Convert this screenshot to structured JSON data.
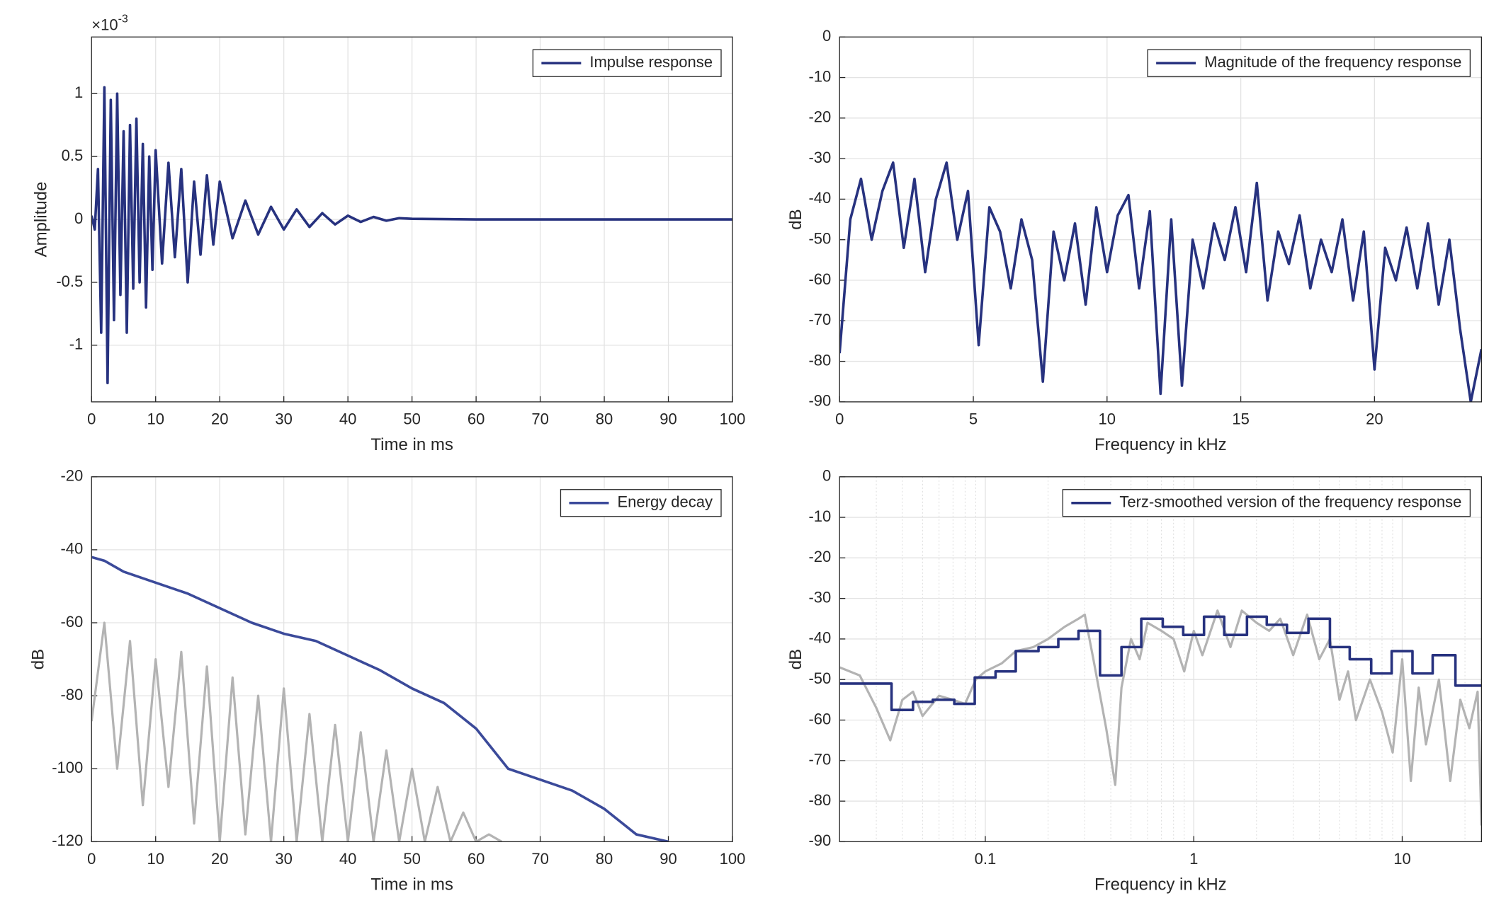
{
  "chart_data": [
    {
      "type": "line",
      "xlabel": "Time in ms",
      "ylabel": "Amplitude",
      "y_multiplier": {
        "base": "×10",
        "exponent": "-3"
      },
      "xlim": [
        0,
        100
      ],
      "xticks": [
        0,
        10,
        20,
        30,
        40,
        50,
        60,
        70,
        80,
        90,
        100
      ],
      "ylim": [
        -1.45,
        1.45
      ],
      "yticks": [
        -1,
        -0.5,
        0,
        0.5,
        1
      ],
      "grid": true,
      "legend": "northeast",
      "series": [
        {
          "name": "Impulse response",
          "color": "#27327f",
          "x": [
            0,
            0.5,
            1,
            1.5,
            2,
            2.5,
            3,
            3.5,
            4,
            4.5,
            5,
            5.5,
            6,
            6.5,
            7,
            7.5,
            8,
            8.5,
            9,
            9.5,
            10,
            11,
            12,
            13,
            14,
            15,
            16,
            17,
            18,
            19,
            20,
            22,
            24,
            26,
            28,
            30,
            32,
            34,
            36,
            38,
            40,
            42,
            44,
            46,
            48,
            50,
            60,
            70,
            80,
            90,
            100
          ],
          "values": [
            0.03,
            -0.08,
            0.4,
            -0.9,
            1.05,
            -1.3,
            0.95,
            -0.8,
            1.0,
            -0.6,
            0.7,
            -0.9,
            0.75,
            -0.55,
            0.8,
            -0.5,
            0.6,
            -0.7,
            0.5,
            -0.4,
            0.55,
            -0.35,
            0.45,
            -0.3,
            0.4,
            -0.5,
            0.3,
            -0.28,
            0.35,
            -0.2,
            0.3,
            -0.15,
            0.15,
            -0.12,
            0.1,
            -0.08,
            0.08,
            -0.06,
            0.05,
            -0.04,
            0.03,
            -0.02,
            0.02,
            -0.01,
            0.01,
            0.005,
            0,
            0,
            0,
            0,
            0
          ]
        }
      ]
    },
    {
      "type": "line",
      "xlabel": "Frequency in kHz",
      "ylabel": "dB",
      "xlim": [
        0,
        24
      ],
      "xticks": [
        0,
        5,
        10,
        15,
        20
      ],
      "ylim": [
        -90,
        0
      ],
      "yticks": [
        -90,
        -80,
        -70,
        -60,
        -50,
        -40,
        -30,
        -20,
        -10,
        0
      ],
      "grid": true,
      "legend": "northeast",
      "series": [
        {
          "name": "Magnitude of the frequency response",
          "color": "#27327f",
          "x": [
            0,
            0.4,
            0.8,
            1.2,
            1.6,
            2.0,
            2.4,
            2.8,
            3.2,
            3.6,
            4.0,
            4.4,
            4.8,
            5.2,
            5.6,
            6.0,
            6.4,
            6.8,
            7.2,
            7.6,
            8.0,
            8.4,
            8.8,
            9.2,
            9.6,
            10.0,
            10.4,
            10.8,
            11.2,
            11.6,
            12.0,
            12.4,
            12.8,
            13.2,
            13.6,
            14.0,
            14.4,
            14.8,
            15.2,
            15.6,
            16.0,
            16.4,
            16.8,
            17.2,
            17.6,
            18.0,
            18.4,
            18.8,
            19.2,
            19.6,
            20.0,
            20.4,
            20.8,
            21.2,
            21.6,
            22.0,
            22.4,
            22.8,
            23.2,
            23.6,
            24.0
          ],
          "values": [
            -78,
            -45,
            -35,
            -50,
            -38,
            -31,
            -52,
            -35,
            -58,
            -40,
            -31,
            -50,
            -38,
            -76,
            -42,
            -48,
            -62,
            -45,
            -55,
            -85,
            -48,
            -60,
            -46,
            -66,
            -42,
            -58,
            -44,
            -39,
            -62,
            -43,
            -88,
            -45,
            -86,
            -50,
            -62,
            -46,
            -55,
            -42,
            -58,
            -36,
            -65,
            -48,
            -56,
            -44,
            -62,
            -50,
            -58,
            -45,
            -65,
            -48,
            -82,
            -52,
            -60,
            -47,
            -62,
            -46,
            -66,
            -50,
            -72,
            -90,
            -77
          ]
        }
      ]
    },
    {
      "type": "line",
      "xlabel": "Time in ms",
      "ylabel": "dB",
      "xlim": [
        0,
        100
      ],
      "xticks": [
        0,
        10,
        20,
        30,
        40,
        50,
        60,
        70,
        80,
        90,
        100
      ],
      "ylim": [
        -120,
        -20
      ],
      "yticks": [
        -120,
        -100,
        -80,
        -60,
        -40,
        -20
      ],
      "grid": true,
      "legend": "northeast",
      "series": [
        {
          "color": "#b3b3b3",
          "x": [
            0,
            2,
            4,
            6,
            8,
            10,
            12,
            14,
            16,
            18,
            20,
            22,
            24,
            26,
            28,
            30,
            32,
            34,
            36,
            38,
            40,
            42,
            44,
            46,
            48,
            50,
            52,
            54,
            56,
            58,
            60,
            62,
            64
          ],
          "values": [
            -87,
            -60,
            -100,
            -65,
            -110,
            -70,
            -105,
            -68,
            -115,
            -72,
            -120,
            -75,
            -118,
            -80,
            -120,
            -78,
            -120,
            -85,
            -120,
            -88,
            -120,
            -90,
            -120,
            -95,
            -120,
            -100,
            -120,
            -105,
            -120,
            -112,
            -120,
            -118,
            -120
          ]
        },
        {
          "name": "Energy decay",
          "color": "#3b4a9a",
          "x": [
            0,
            2,
            5,
            10,
            15,
            20,
            25,
            30,
            35,
            40,
            45,
            50,
            55,
            60,
            65,
            70,
            75,
            80,
            85,
            90
          ],
          "values": [
            -42,
            -43,
            -46,
            -49,
            -52,
            -56,
            -60,
            -63,
            -65,
            -69,
            -73,
            -78,
            -82,
            -89,
            -100,
            -103,
            -106,
            -111,
            -118,
            -120
          ]
        }
      ]
    },
    {
      "type": "line",
      "xlabel": "Frequency in kHz",
      "ylabel": "dB",
      "xscale": "log",
      "xlim": [
        0.02,
        24
      ],
      "xticks": [
        0.1,
        1,
        10
      ],
      "ylim": [
        -90,
        0
      ],
      "yticks": [
        -90,
        -80,
        -70,
        -60,
        -50,
        -40,
        -30,
        -20,
        -10,
        0
      ],
      "grid": true,
      "minor_grid": true,
      "legend": "northeast",
      "series": [
        {
          "color": "#b3b3b3",
          "x": [
            0.02,
            0.025,
            0.03,
            0.035,
            0.04,
            0.045,
            0.05,
            0.06,
            0.07,
            0.08,
            0.09,
            0.1,
            0.12,
            0.14,
            0.17,
            0.2,
            0.24,
            0.28,
            0.3,
            0.33,
            0.38,
            0.42,
            0.45,
            0.5,
            0.55,
            0.6,
            0.7,
            0.8,
            0.9,
            1.0,
            1.1,
            1.3,
            1.5,
            1.7,
            2.0,
            2.3,
            2.6,
            3.0,
            3.5,
            4.0,
            4.5,
            5.0,
            5.5,
            6.0,
            7.0,
            8.0,
            9.0,
            10,
            11,
            12,
            13,
            15,
            17,
            19,
            21,
            23,
            24
          ],
          "values": [
            -47,
            -49,
            -57,
            -65,
            -55,
            -53,
            -59,
            -54,
            -55,
            -56,
            -50,
            -48,
            -46,
            -43,
            -42,
            -40,
            -37,
            -35,
            -34,
            -45,
            -62,
            -76,
            -52,
            -40,
            -45,
            -36,
            -38,
            -40,
            -48,
            -38,
            -44,
            -33,
            -42,
            -33,
            -36,
            -38,
            -35,
            -44,
            -34,
            -45,
            -40,
            -55,
            -48,
            -60,
            -50,
            -58,
            -68,
            -45,
            -75,
            -52,
            -66,
            -50,
            -75,
            -55,
            -62,
            -53,
            -86
          ]
        },
        {
          "name": "Terz-smoothed version of the frequency response",
          "color": "#27327f",
          "step": "post",
          "x": [
            0.02,
            0.0355,
            0.045,
            0.056,
            0.071,
            0.089,
            0.112,
            0.14,
            0.18,
            0.224,
            0.28,
            0.355,
            0.45,
            0.56,
            0.71,
            0.89,
            1.12,
            1.4,
            1.8,
            2.24,
            2.8,
            3.55,
            4.5,
            5.6,
            7.1,
            8.9,
            11.2,
            14,
            18
          ],
          "values": [
            -51,
            -57.5,
            -55.5,
            -55,
            -56,
            -49.5,
            -48,
            -43,
            -42,
            -40,
            -38,
            -49,
            -42,
            -35,
            -37,
            -39,
            -34.5,
            -39,
            -34.5,
            -36.5,
            -38.5,
            -35,
            -42,
            -45,
            -48.5,
            -43,
            -48.5,
            -44,
            -51.5
          ]
        }
      ]
    }
  ]
}
